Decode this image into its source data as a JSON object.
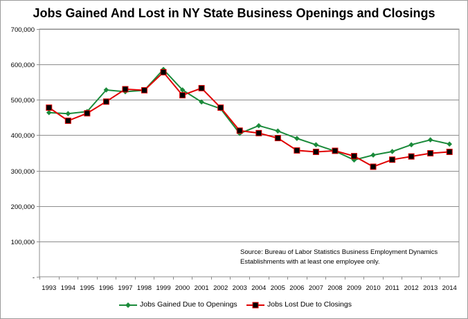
{
  "chart_data": {
    "type": "line",
    "title": "Jobs Gained And Lost in NY State Business Openings and Closings",
    "categories": [
      "1993",
      "1994",
      "1995",
      "1996",
      "1997",
      "1998",
      "1999",
      "2000",
      "2001",
      "2002",
      "2003",
      "2004",
      "2005",
      "2006",
      "2007",
      "2008",
      "2009",
      "2010",
      "2011",
      "2012",
      "2013",
      "2014"
    ],
    "series": [
      {
        "name": "Jobs Gained Due to Openings",
        "color": "#1a8a3a",
        "marker": "diamond",
        "values": [
          464000,
          461000,
          467000,
          528000,
          523000,
          527000,
          586000,
          528000,
          494000,
          475000,
          405000,
          427000,
          412000,
          391000,
          373000,
          355000,
          330000,
          344000,
          354000,
          373000,
          387000,
          375000
        ]
      },
      {
        "name": "Jobs Lost Due to Closings",
        "color": "#e00000",
        "marker": "square",
        "values": [
          478000,
          441000,
          462000,
          495000,
          530000,
          527000,
          578000,
          513000,
          533000,
          478000,
          413000,
          406000,
          392000,
          357000,
          353000,
          356000,
          341000,
          311000,
          331000,
          340000,
          349000,
          353000
        ]
      }
    ],
    "ylim": [
      0,
      700000
    ],
    "yticks": [
      "-",
      "100,000",
      "200,000",
      "300,000",
      "400,000",
      "500,000",
      "600,000",
      "700,000"
    ],
    "grid": true,
    "legend_position": "bottom",
    "annotation": [
      "Source:  Bureau of Labor Statistics Business Employment Dynamics",
      "Establishments with at least one employee only."
    ]
  }
}
